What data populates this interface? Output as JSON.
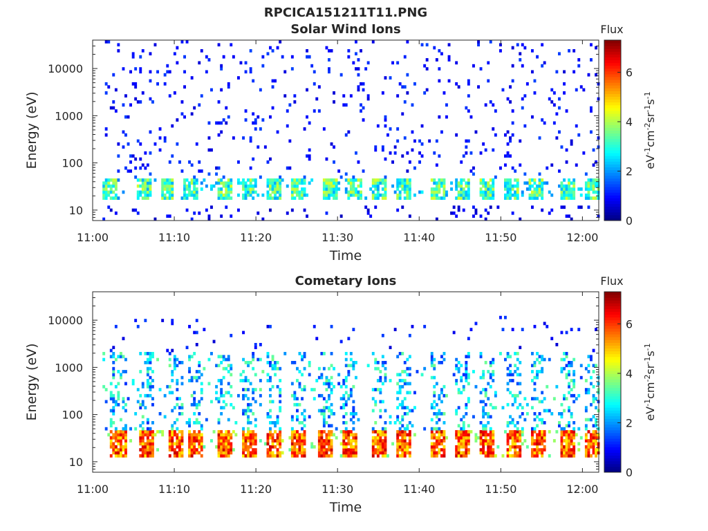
{
  "figure": {
    "title": "RPCICA151211T11.PNG"
  },
  "chart_data": [
    {
      "type": "heatmap",
      "title": "Solar Wind Ions",
      "xlabel": "Time",
      "ylabel": "Energy (eV)",
      "x_range": [
        "11:00",
        "12:02"
      ],
      "y_range": [
        6,
        40000
      ],
      "y_scale": "log",
      "x_ticks": [
        "11:00",
        "11:10",
        "11:20",
        "11:30",
        "11:40",
        "11:50",
        "12:00"
      ],
      "y_ticks": [
        "10",
        "100",
        "1000",
        "10000"
      ],
      "colorbar": {
        "title": "Flux",
        "label": "eV-1cm-2sr-1s-1",
        "range": [
          0,
          7.3
        ],
        "ticks": [
          "0",
          "2",
          "4",
          "6"
        ],
        "colormap": "jet"
      },
      "bands": [
        {
          "energy_range": [
            18,
            45
          ],
          "typical_flux": 3,
          "description": "burst"
        },
        {
          "energy_range": [
            6,
            12
          ],
          "typical_flux": 1
        },
        {
          "energy_range": [
            60,
            40000
          ],
          "typical_flux": 0.6
        }
      ],
      "burst_times_min": [
        2,
        6,
        9,
        12,
        16,
        19,
        22,
        25,
        29,
        32,
        35,
        38,
        42,
        45,
        48,
        51,
        54,
        58,
        61
      ],
      "peak_flux": 4.5
    },
    {
      "type": "heatmap",
      "title": "Cometary Ions",
      "xlabel": "Time",
      "ylabel": "Energy (eV)",
      "x_range": [
        "11:00",
        "12:02"
      ],
      "y_range": [
        6,
        40000
      ],
      "y_scale": "log",
      "x_ticks": [
        "11:00",
        "11:10",
        "11:20",
        "11:30",
        "11:40",
        "11:50",
        "12:00"
      ],
      "y_ticks": [
        "10",
        "100",
        "1000",
        "10000"
      ],
      "colorbar": {
        "title": "Flux",
        "label": "eV-1cm-2sr-1s-1",
        "range": [
          0,
          7.3
        ],
        "ticks": [
          "0",
          "2",
          "4",
          "6"
        ],
        "colormap": "jet"
      },
      "bands": [
        {
          "energy_range": [
            12,
            45
          ],
          "typical_flux": 5.5,
          "description": "burst"
        },
        {
          "energy_range": [
            45,
            2000
          ],
          "typical_flux": 3
        },
        {
          "energy_range": [
            2000,
            12000
          ],
          "typical_flux": 0.6
        }
      ],
      "burst_times_min": [
        3,
        6.5,
        10,
        12.5,
        16,
        19,
        22,
        25,
        28.5,
        31.5,
        35,
        38,
        42,
        45,
        48,
        51.5,
        54.5,
        58,
        61
      ],
      "peak_flux": 7
    }
  ]
}
